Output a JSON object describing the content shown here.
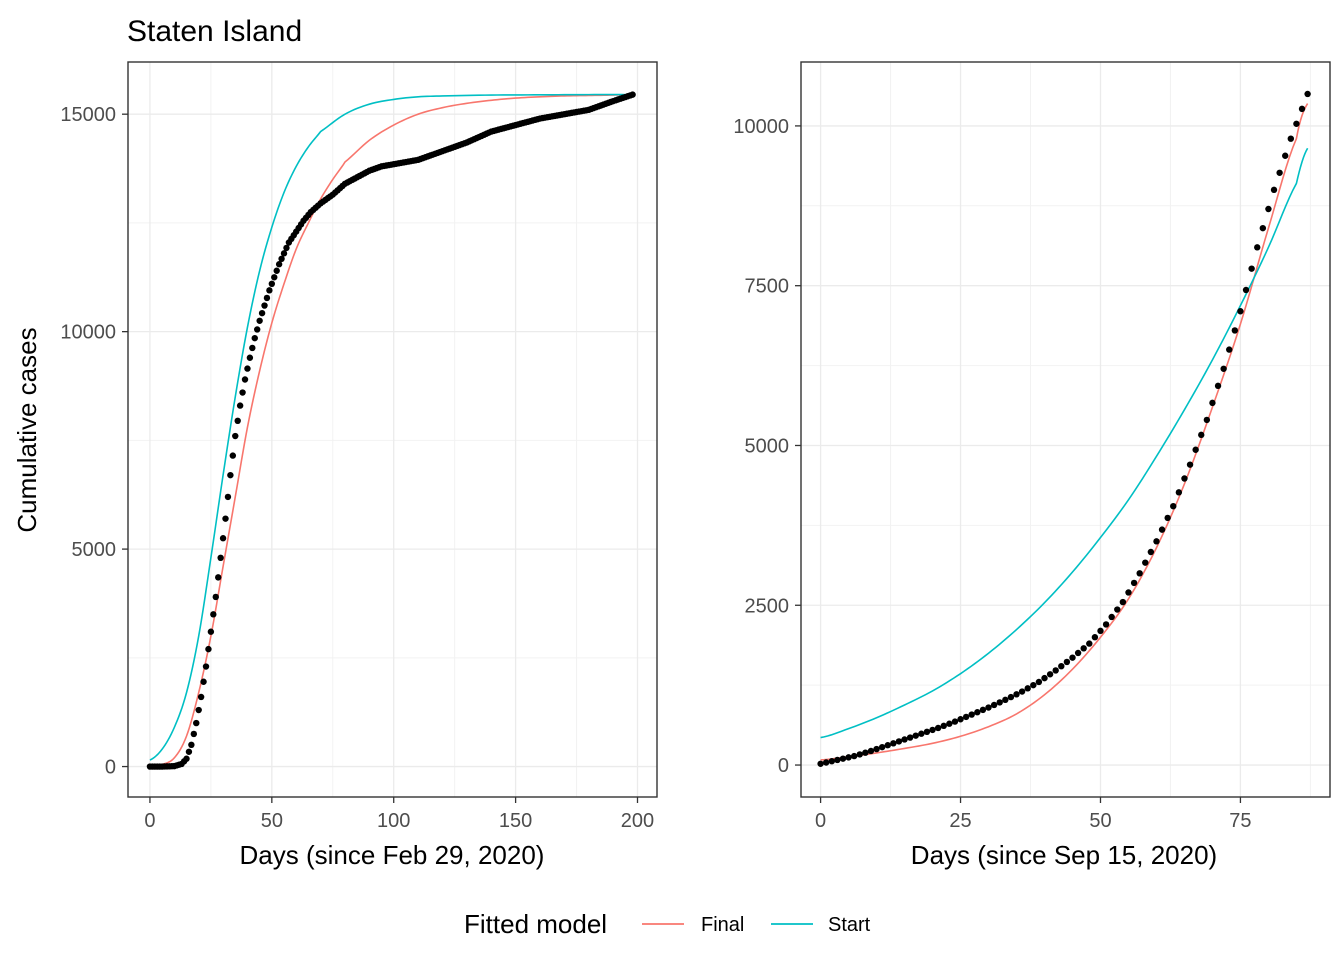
{
  "figure": {
    "title": "Staten Island"
  },
  "legend": {
    "title": "Fitted model",
    "entries": [
      {
        "label": "Final",
        "color": "#F8766D"
      },
      {
        "label": "Start",
        "color": "#00BFC4"
      }
    ]
  },
  "chart_data": [
    {
      "type": "scatter",
      "xlabel": "Days (since Feb 29, 2020)",
      "ylabel": "Cumulative cases",
      "xlim": [
        -9,
        208
      ],
      "ylim": [
        -700,
        16200
      ],
      "xticks": [
        0,
        50,
        100,
        150,
        200
      ],
      "yticks": [
        0,
        5000,
        10000,
        15000
      ],
      "ytick_labels": [
        "0",
        "5000",
        "10000",
        "15000"
      ],
      "grid": true,
      "observed": {
        "x": [
          0,
          5,
          10,
          13,
          15,
          17,
          19,
          21,
          23,
          25,
          27,
          29,
          31,
          33,
          35,
          37,
          39,
          41,
          43,
          45,
          47,
          49,
          51,
          53,
          55,
          57,
          60,
          63,
          66,
          70,
          75,
          80,
          85,
          90,
          95,
          100,
          110,
          120,
          130,
          140,
          150,
          160,
          170,
          180,
          190,
          198
        ],
        "y": [
          0,
          0,
          10,
          60,
          180,
          500,
          1000,
          1600,
          2300,
          3100,
          3900,
          4800,
          5700,
          6700,
          7600,
          8300,
          8900,
          9400,
          9850,
          10250,
          10600,
          10950,
          11250,
          11550,
          11800,
          12050,
          12300,
          12550,
          12750,
          12950,
          13150,
          13400,
          13550,
          13700,
          13800,
          13850,
          13950,
          14150,
          14350,
          14600,
          14750,
          14900,
          15000,
          15100,
          15300,
          15450
        ]
      },
      "series": [
        {
          "name": "Final",
          "color": "#F8766D",
          "x": [
            0,
            5,
            10,
            15,
            20,
            25,
            30,
            35,
            40,
            45,
            50,
            55,
            60,
            65,
            70,
            75,
            80,
            90,
            100,
            110,
            120,
            130,
            140,
            150,
            160,
            170,
            180,
            190,
            198
          ],
          "y": [
            20,
            50,
            200,
            700,
            1700,
            3000,
            4600,
            6200,
            7800,
            9100,
            10200,
            11100,
            11900,
            12500,
            13050,
            13500,
            13900,
            14400,
            14750,
            15000,
            15150,
            15250,
            15320,
            15370,
            15400,
            15420,
            15430,
            15440,
            15450
          ]
        },
        {
          "name": "Start",
          "color": "#00BFC4",
          "x": [
            0,
            5,
            10,
            15,
            20,
            25,
            30,
            35,
            40,
            45,
            50,
            55,
            60,
            65,
            70,
            80,
            90,
            100,
            110,
            120,
            140,
            160,
            180,
            198
          ],
          "y": [
            150,
            400,
            900,
            1700,
            3000,
            4800,
            6700,
            8500,
            10100,
            11400,
            12400,
            13200,
            13800,
            14250,
            14600,
            15000,
            15230,
            15340,
            15400,
            15420,
            15440,
            15445,
            15450,
            15450
          ]
        }
      ]
    },
    {
      "type": "scatter",
      "xlabel": "Days (since Sep 15, 2020)",
      "ylabel": "",
      "xlim": [
        -3.5,
        91
      ],
      "ylim": [
        -500,
        11000
      ],
      "xticks": [
        0,
        25,
        50,
        75
      ],
      "yticks": [
        0,
        2500,
        5000,
        7500,
        10000
      ],
      "ytick_labels": [
        "0",
        "2500",
        "5000",
        "7500",
        "10000"
      ],
      "grid": true,
      "observed": {
        "x": [
          0,
          3,
          6,
          9,
          12,
          15,
          18,
          21,
          24,
          27,
          30,
          33,
          36,
          39,
          42,
          45,
          48,
          51,
          54,
          57,
          60,
          63,
          66,
          69,
          72,
          75,
          78,
          81,
          84,
          87
        ],
        "y": [
          20,
          80,
          140,
          220,
          310,
          400,
          490,
          580,
          680,
          790,
          900,
          1020,
          1150,
          1300,
          1480,
          1680,
          1900,
          2200,
          2550,
          3000,
          3500,
          4050,
          4700,
          5400,
          6200,
          7100,
          8100,
          9000,
          9800,
          10500
        ]
      },
      "series": [
        {
          "name": "Final",
          "color": "#F8766D",
          "x": [
            0,
            5,
            10,
            15,
            20,
            25,
            30,
            35,
            40,
            45,
            50,
            55,
            60,
            65,
            70,
            75,
            80,
            85,
            87
          ],
          "y": [
            80,
            130,
            190,
            260,
            340,
            450,
            600,
            800,
            1100,
            1500,
            2000,
            2600,
            3400,
            4400,
            5600,
            6900,
            8400,
            9800,
            10350
          ]
        },
        {
          "name": "Start",
          "color": "#00BFC4",
          "x": [
            0,
            5,
            10,
            15,
            20,
            25,
            30,
            35,
            40,
            45,
            50,
            55,
            60,
            65,
            70,
            75,
            80,
            85,
            87
          ],
          "y": [
            430,
            570,
            740,
            940,
            1160,
            1430,
            1750,
            2120,
            2540,
            3020,
            3560,
            4150,
            4830,
            5560,
            6340,
            7190,
            8100,
            9100,
            9650
          ]
        }
      ]
    }
  ]
}
